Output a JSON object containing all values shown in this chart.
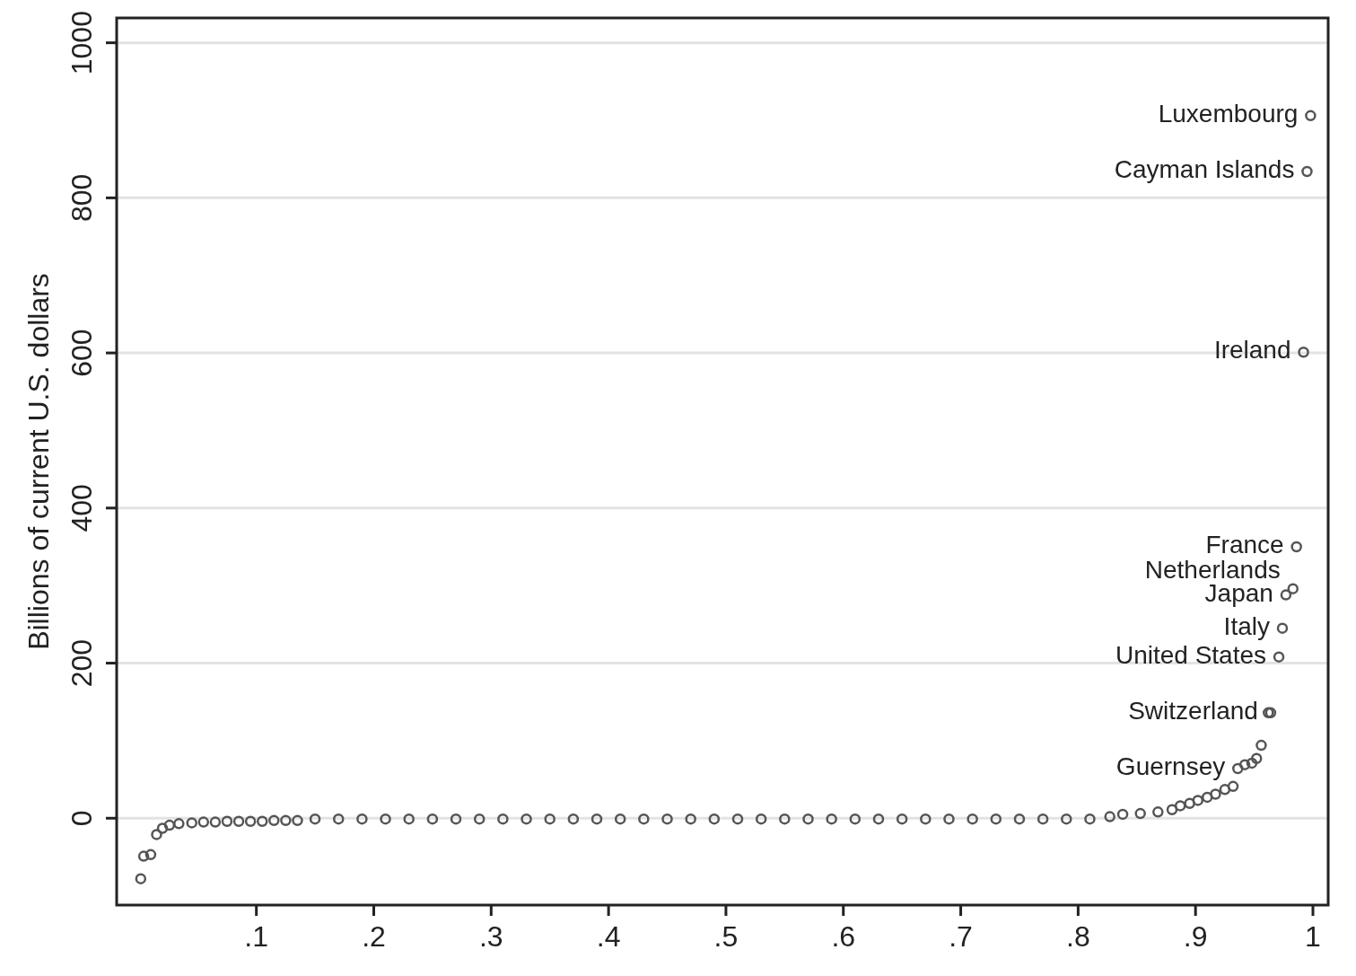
{
  "chart_data": {
    "type": "scatter",
    "ylabel": "Billions of current U.S. dollars",
    "xlim": [
      -0.019,
      1.013
    ],
    "ylim": [
      -112,
      1032
    ],
    "xticks": [
      {
        "value": 0.1,
        "label": ".1"
      },
      {
        "value": 0.2,
        "label": ".2"
      },
      {
        "value": 0.3,
        "label": ".3"
      },
      {
        "value": 0.4,
        "label": ".4"
      },
      {
        "value": 0.5,
        "label": ".5"
      },
      {
        "value": 0.6,
        "label": ".6"
      },
      {
        "value": 0.7,
        "label": ".7"
      },
      {
        "value": 0.8,
        "label": ".8"
      },
      {
        "value": 0.9,
        "label": ".9"
      },
      1
    ],
    "yticks": [
      0,
      200,
      400,
      600,
      800,
      1000
    ],
    "grid": "y",
    "marker": "circle",
    "series": [
      {
        "color": "#555555",
        "x": [
          0.0015,
          0.004,
          0.01,
          0.015,
          0.02,
          0.026,
          0.034,
          0.045,
          0.055,
          0.065,
          0.075,
          0.085,
          0.095,
          0.105,
          0.115,
          0.125,
          0.135,
          0.15,
          0.17,
          0.19,
          0.21,
          0.23,
          0.25,
          0.27,
          0.29,
          0.31,
          0.33,
          0.35,
          0.37,
          0.39,
          0.41,
          0.43,
          0.45,
          0.47,
          0.49,
          0.51,
          0.53,
          0.55,
          0.57,
          0.59,
          0.61,
          0.63,
          0.65,
          0.67,
          0.69,
          0.71,
          0.73,
          0.75,
          0.77,
          0.79,
          0.81,
          0.827,
          0.838,
          0.853,
          0.868,
          0.88,
          0.887,
          0.895,
          0.902,
          0.91,
          0.917,
          0.925,
          0.932,
          0.936,
          0.942,
          0.948,
          0.952,
          0.956,
          0.962,
          0.964,
          0.971,
          0.974,
          0.977,
          0.983,
          0.986,
          0.992,
          0.995,
          0.998
        ],
        "values": [
          -78,
          -49,
          -47,
          -21,
          -13,
          -9,
          -7,
          -6,
          -5,
          -5,
          -4,
          -4,
          -4,
          -4,
          -3,
          -3,
          -3,
          -1,
          -1,
          -1,
          -1,
          -1,
          -1,
          -1,
          -1,
          -1,
          -1,
          -1,
          -1,
          -1,
          -1,
          -1,
          -1,
          -1,
          -1,
          -1,
          -1,
          -1,
          -1,
          -1,
          -1,
          -1,
          -1,
          -1,
          -1,
          -1,
          -1,
          -1,
          -1,
          -1,
          -1,
          2,
          5,
          6,
          8,
          11,
          16,
          19,
          23,
          27,
          31,
          37,
          41,
          64,
          69,
          71,
          77,
          94,
          136,
          136,
          208,
          245,
          288,
          296,
          350,
          601,
          834,
          906
        ]
      }
    ],
    "annotations": [
      {
        "text": "Luxembourg",
        "x": 0.998,
        "y": 906
      },
      {
        "text": "Cayman Islands",
        "x": 0.995,
        "y": 834
      },
      {
        "text": "Ireland",
        "x": 0.992,
        "y": 601
      },
      {
        "text": "France",
        "x": 0.986,
        "y": 350
      },
      {
        "text": "Netherlands",
        "x": 0.983,
        "y": 296
      },
      {
        "text": "Japan",
        "x": 0.977,
        "y": 288
      },
      {
        "text": "Italy",
        "x": 0.974,
        "y": 245
      },
      {
        "text": "United States",
        "x": 0.971,
        "y": 208
      },
      {
        "text": "Switzerland",
        "x": 0.964,
        "y": 136
      },
      {
        "text": "Guernsey",
        "x": 0.936,
        "y": 64
      }
    ]
  }
}
